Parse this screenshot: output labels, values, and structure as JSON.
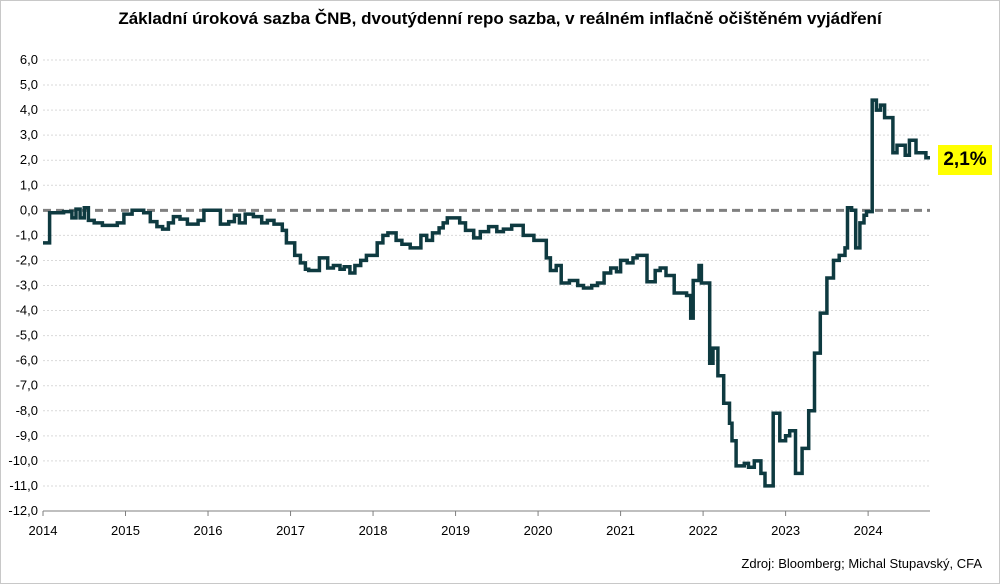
{
  "chart_data": {
    "type": "line",
    "title": "Základní úroková sazba ČNB, dvoutýdenní repo sazba, v reálném inflačně očištěném vyjádření",
    "xlabel": "",
    "ylabel": "",
    "xlim": [
      2014.0,
      2024.75
    ],
    "ylim": [
      -12.0,
      6.0
    ],
    "x_ticks": [
      "2014",
      "2015",
      "2016",
      "2017",
      "2018",
      "2019",
      "2020",
      "2021",
      "2022",
      "2023",
      "2024"
    ],
    "y_ticks": [
      "6,0",
      "5,0",
      "4,0",
      "3,0",
      "2,0",
      "1,0",
      "0,0",
      "-1,0",
      "-2,0",
      "-3,0",
      "-4,0",
      "-5,0",
      "-6,0",
      "-7,0",
      "-8,0",
      "-9,0",
      "-10,0",
      "-11,0",
      "-12,0"
    ],
    "grid": true,
    "reference_line": {
      "y": 0.0,
      "style": "dashed",
      "color": "#808080"
    },
    "line_color": "#0e3a40",
    "callout": {
      "label": "2,1%",
      "color": "#ffff00"
    },
    "series": [
      {
        "step": true,
        "points": [
          [
            2014.0,
            -1.3
          ],
          [
            2014.08,
            -0.1
          ],
          [
            2014.25,
            -0.05
          ],
          [
            2014.35,
            -0.3
          ],
          [
            2014.4,
            0.05
          ],
          [
            2014.45,
            -0.3
          ],
          [
            2014.5,
            0.1
          ],
          [
            2014.55,
            -0.4
          ],
          [
            2014.62,
            -0.5
          ],
          [
            2014.72,
            -0.6
          ],
          [
            2014.9,
            -0.5
          ],
          [
            2014.98,
            -0.15
          ],
          [
            2015.08,
            0.0
          ],
          [
            2015.22,
            -0.1
          ],
          [
            2015.3,
            -0.45
          ],
          [
            2015.38,
            -0.65
          ],
          [
            2015.45,
            -0.75
          ],
          [
            2015.52,
            -0.5
          ],
          [
            2015.58,
            -0.25
          ],
          [
            2015.66,
            -0.35
          ],
          [
            2015.75,
            -0.55
          ],
          [
            2015.88,
            -0.4
          ],
          [
            2015.95,
            0.0
          ],
          [
            2016.15,
            -0.55
          ],
          [
            2016.25,
            -0.45
          ],
          [
            2016.32,
            -0.2
          ],
          [
            2016.38,
            -0.5
          ],
          [
            2016.45,
            -0.15
          ],
          [
            2016.55,
            -0.25
          ],
          [
            2016.65,
            -0.5
          ],
          [
            2016.72,
            -0.4
          ],
          [
            2016.8,
            -0.55
          ],
          [
            2016.9,
            -0.8
          ],
          [
            2016.95,
            -1.3
          ],
          [
            2017.05,
            -1.8
          ],
          [
            2017.12,
            -2.1
          ],
          [
            2017.18,
            -2.35
          ],
          [
            2017.22,
            -2.4
          ],
          [
            2017.35,
            -1.9
          ],
          [
            2017.45,
            -2.3
          ],
          [
            2017.52,
            -2.2
          ],
          [
            2017.6,
            -2.35
          ],
          [
            2017.65,
            -2.25
          ],
          [
            2017.72,
            -2.5
          ],
          [
            2017.78,
            -2.2
          ],
          [
            2017.85,
            -2.0
          ],
          [
            2017.92,
            -1.8
          ],
          [
            2018.05,
            -1.3
          ],
          [
            2018.12,
            -1.0
          ],
          [
            2018.18,
            -0.9
          ],
          [
            2018.28,
            -1.2
          ],
          [
            2018.35,
            -1.35
          ],
          [
            2018.45,
            -1.5
          ],
          [
            2018.58,
            -1.0
          ],
          [
            2018.65,
            -1.2
          ],
          [
            2018.72,
            -0.9
          ],
          [
            2018.8,
            -0.7
          ],
          [
            2018.85,
            -0.5
          ],
          [
            2018.9,
            -0.3
          ],
          [
            2019.05,
            -0.5
          ],
          [
            2019.12,
            -0.8
          ],
          [
            2019.22,
            -1.1
          ],
          [
            2019.3,
            -0.85
          ],
          [
            2019.4,
            -0.65
          ],
          [
            2019.5,
            -0.85
          ],
          [
            2019.58,
            -0.75
          ],
          [
            2019.68,
            -0.6
          ],
          [
            2019.82,
            -1.0
          ],
          [
            2019.95,
            -1.2
          ],
          [
            2020.1,
            -1.9
          ],
          [
            2020.15,
            -2.4
          ],
          [
            2020.22,
            -2.2
          ],
          [
            2020.28,
            -2.9
          ],
          [
            2020.38,
            -2.8
          ],
          [
            2020.48,
            -3.0
          ],
          [
            2020.55,
            -3.1
          ],
          [
            2020.65,
            -3.0
          ],
          [
            2020.72,
            -2.9
          ],
          [
            2020.8,
            -2.5
          ],
          [
            2020.88,
            -2.3
          ],
          [
            2020.95,
            -2.45
          ],
          [
            2021.0,
            -2.0
          ],
          [
            2021.08,
            -2.1
          ],
          [
            2021.15,
            -1.9
          ],
          [
            2021.2,
            -1.8
          ],
          [
            2021.32,
            -2.85
          ],
          [
            2021.42,
            -2.4
          ],
          [
            2021.48,
            -2.3
          ],
          [
            2021.55,
            -2.6
          ],
          [
            2021.65,
            -3.3
          ],
          [
            2021.8,
            -3.4
          ],
          [
            2021.85,
            -4.3
          ],
          [
            2021.88,
            -2.8
          ],
          [
            2021.95,
            -2.2
          ],
          [
            2021.98,
            -2.9
          ],
          [
            2022.05,
            -2.9
          ],
          [
            2022.08,
            -6.1
          ],
          [
            2022.12,
            -5.5
          ],
          [
            2022.18,
            -6.6
          ],
          [
            2022.25,
            -7.7
          ],
          [
            2022.32,
            -8.5
          ],
          [
            2022.35,
            -9.2
          ],
          [
            2022.4,
            -10.2
          ],
          [
            2022.5,
            -10.1
          ],
          [
            2022.55,
            -10.25
          ],
          [
            2022.62,
            -10.0
          ],
          [
            2022.7,
            -10.5
          ],
          [
            2022.75,
            -11.0
          ],
          [
            2022.85,
            -8.1
          ],
          [
            2022.93,
            -9.2
          ],
          [
            2023.0,
            -9.0
          ],
          [
            2023.05,
            -8.8
          ],
          [
            2023.12,
            -10.5
          ],
          [
            2023.2,
            -9.5
          ],
          [
            2023.28,
            -8.0
          ],
          [
            2023.35,
            -5.7
          ],
          [
            2023.42,
            -4.1
          ],
          [
            2023.5,
            -2.7
          ],
          [
            2023.58,
            -2.0
          ],
          [
            2023.65,
            -1.8
          ],
          [
            2023.72,
            -1.5
          ],
          [
            2023.75,
            0.1
          ],
          [
            2023.8,
            0.0
          ],
          [
            2023.85,
            -1.5
          ],
          [
            2023.9,
            -0.5
          ],
          [
            2023.95,
            -0.2
          ],
          [
            2023.98,
            -0.05
          ],
          [
            2024.05,
            4.4
          ],
          [
            2024.1,
            4.0
          ],
          [
            2024.15,
            4.2
          ],
          [
            2024.2,
            3.7
          ],
          [
            2024.3,
            2.3
          ],
          [
            2024.35,
            2.6
          ],
          [
            2024.45,
            2.2
          ],
          [
            2024.5,
            2.8
          ],
          [
            2024.58,
            2.3
          ],
          [
            2024.7,
            2.1
          ],
          [
            2024.75,
            2.1
          ]
        ]
      }
    ],
    "source": "Zdroj: Bloomberg; Michal Stupavský, CFA"
  }
}
